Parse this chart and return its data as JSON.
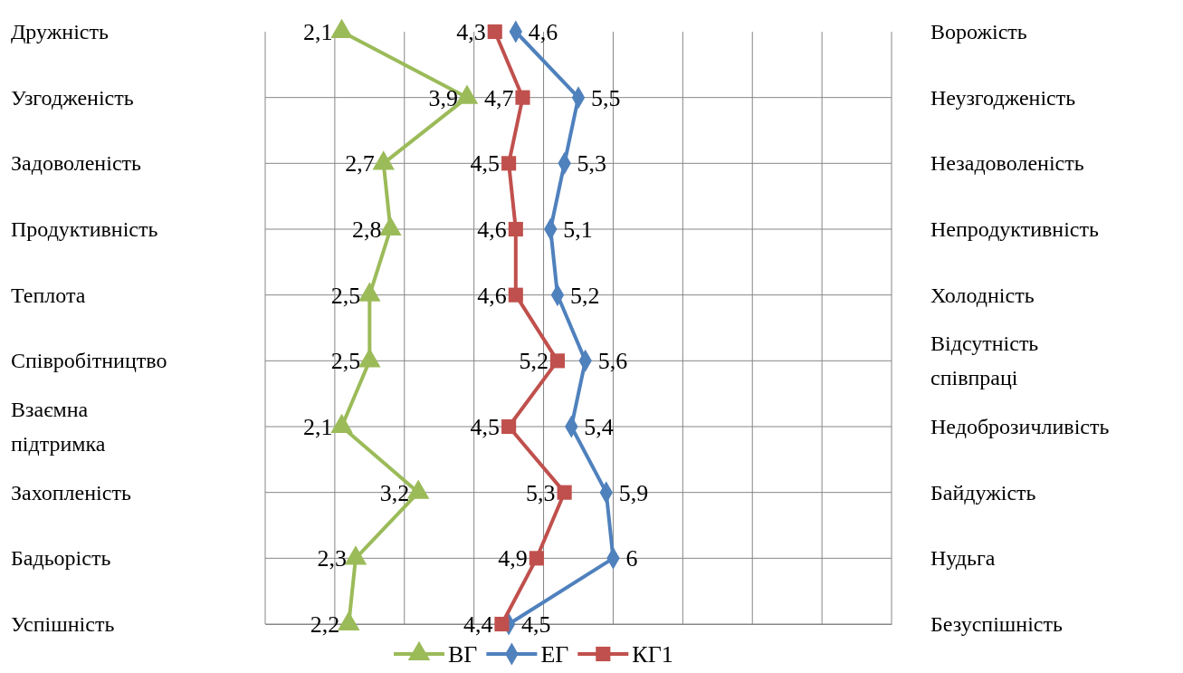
{
  "chart_data": {
    "type": "line",
    "orientation": "horizontal",
    "categories": [
      "Дружність",
      "Узгодженість",
      "Задоволеність",
      "Продуктивність",
      "Теплота",
      "Співробітництво",
      "Взаємна підтримка",
      "Захопленість",
      "Бадьорість",
      "Успішність"
    ],
    "y2_categories": [
      "Ворожість",
      "Неузгодженість",
      "Незадоволеність",
      "Непродуктивність",
      "Холодність",
      "Відсутність співпраці",
      "Недоброзичливість",
      "Байдужість",
      "Нудьга",
      "Безуспішність"
    ],
    "xlim": [
      1,
      10
    ],
    "xticks": [
      {
        "value": 1,
        "label": null
      },
      {
        "value": 2,
        "label": null
      },
      {
        "value": 3,
        "label": null
      },
      {
        "value": 4,
        "label": null
      },
      {
        "value": 5,
        "label": null
      },
      {
        "value": 6,
        "label": null
      },
      {
        "value": 7,
        "label": null
      },
      {
        "value": 8,
        "label": null
      },
      {
        "value": 9,
        "label": null
      },
      {
        "value": 10,
        "label": null
      }
    ],
    "tick_labels": "y",
    "grid": true,
    "legend": "bottom",
    "series": [
      {
        "name": "ВГ",
        "color": "#9bbb59",
        "marker": "triangle",
        "values": [
          2.1,
          3.9,
          2.7,
          2.8,
          2.5,
          2.5,
          2.1,
          3.2,
          2.3,
          2.2
        ],
        "value_labels": [
          "2,1",
          "3,9",
          "2,7",
          "2,8",
          "2,5",
          "2,5",
          "2,1",
          "3,2",
          "2,3",
          "2,2"
        ]
      },
      {
        "name": "ЕГ",
        "color": "#4f81bd",
        "marker": "diamond",
        "values": [
          4.6,
          5.5,
          5.3,
          5.1,
          5.2,
          5.6,
          5.4,
          5.9,
          6,
          4.5
        ],
        "value_labels": [
          "4,6",
          "5,5",
          "5,3",
          "5,1",
          "5,2",
          "5,6",
          "5,4",
          "5,9",
          "6",
          "4,5"
        ]
      },
      {
        "name": "КГ1",
        "color": "#c0504d",
        "marker": "square",
        "values": [
          4.3,
          4.7,
          4.5,
          4.6,
          4.6,
          5.2,
          4.5,
          5.3,
          4.9,
          4.4
        ],
        "value_labels": [
          "4,3",
          "4,7",
          "4,5",
          "4,6",
          "4,6",
          "5,2",
          "4,5",
          "5,3",
          "4,9",
          "4,4"
        ]
      }
    ]
  }
}
